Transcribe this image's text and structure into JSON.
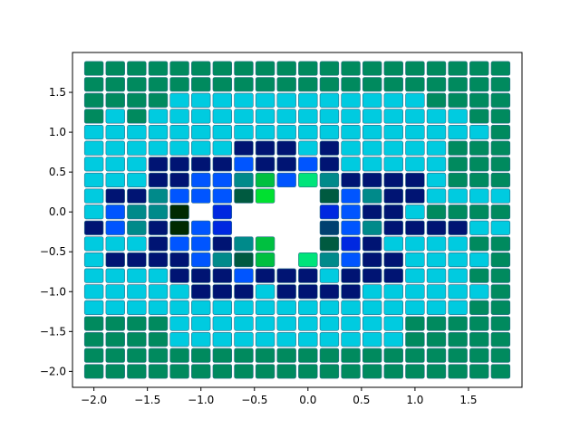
{
  "chart_data": {
    "type": "heatmap",
    "title": "",
    "xlabel": "",
    "ylabel": "",
    "x_start": -2.0,
    "y_start": -2.0,
    "step": 0.2,
    "xlim": [
      -2.2,
      2.0
    ],
    "ylim": [
      -2.2,
      2.0
    ],
    "xticks": [
      -2.0,
      -1.5,
      -1.0,
      -0.5,
      0.0,
      0.5,
      1.0,
      1.5
    ],
    "xtick_labels": [
      "−2.0",
      "−1.5",
      "−1.0",
      "−0.5",
      "0.0",
      "0.5",
      "1.0",
      "1.5"
    ],
    "yticks": [
      -2.0,
      -1.5,
      -1.0,
      -0.5,
      0.0,
      0.5,
      1.0,
      1.5
    ],
    "ytick_labels": [
      "−2.0",
      "−1.5",
      "−1.0",
      "−0.5",
      "0.0",
      "0.5",
      "1.0",
      "1.5"
    ],
    "grid": false,
    "legend": "none",
    "palette": {
      "A": "#00cbe0",
      "B": "#008a5e",
      "C": "#001473",
      "D": "#0055ff",
      "E": "#008a8a",
      "F": "#00e47a",
      "G": "#005a40",
      "H": "#00c040",
      "I": "#0028e0",
      "J": "#002a00",
      "K": "#004070",
      "L": "#00e030"
    },
    "cell_edge_color": "#2a6e8a",
    "rows": [
      "BBBBBBBBBBBBBBBBBBBB",
      "BBBBBBBBBBBBBBBBBBBB",
      "BBBBAAAAAAAAAAAABBBB",
      "BABAAAAAAAAAAAAAAABB",
      "AAAAAAAAAAAAAAAAAAAB",
      "AAAAAAACCCACAAAAABBB",
      "AAACCCCDCCDCAAAAABBB",
      "AAACCDDEHDFECCCCABBB",
      "ACCEDDDGL..GDECCAAAA",
      "ADEEJ.I....IDCCABBBB",
      "CDECJDI....KDECAAAAA",
      "AAACDDCEH..GICAAAABB",
      "ACCCCDEGH.FEDCCAAAAB",
      "AAAACCCDCCCACCCAAABB",
      "AAAAACCCACCCCAAAAAAB",
      "AAAAAAAAAAAAAAAAAABB",
      "BBBBAAAAAAAAAAABBBBB",
      "BBBBAAAAAAAAAAABBBBB",
      "BBBBBBBBBBBBBBBBBBBB",
      "BBBBBBBBBBBBBBBBBBBB"
    ],
    "row_overrides": {
      "10": "CDECJDI....KDECCCCAA"
    }
  }
}
